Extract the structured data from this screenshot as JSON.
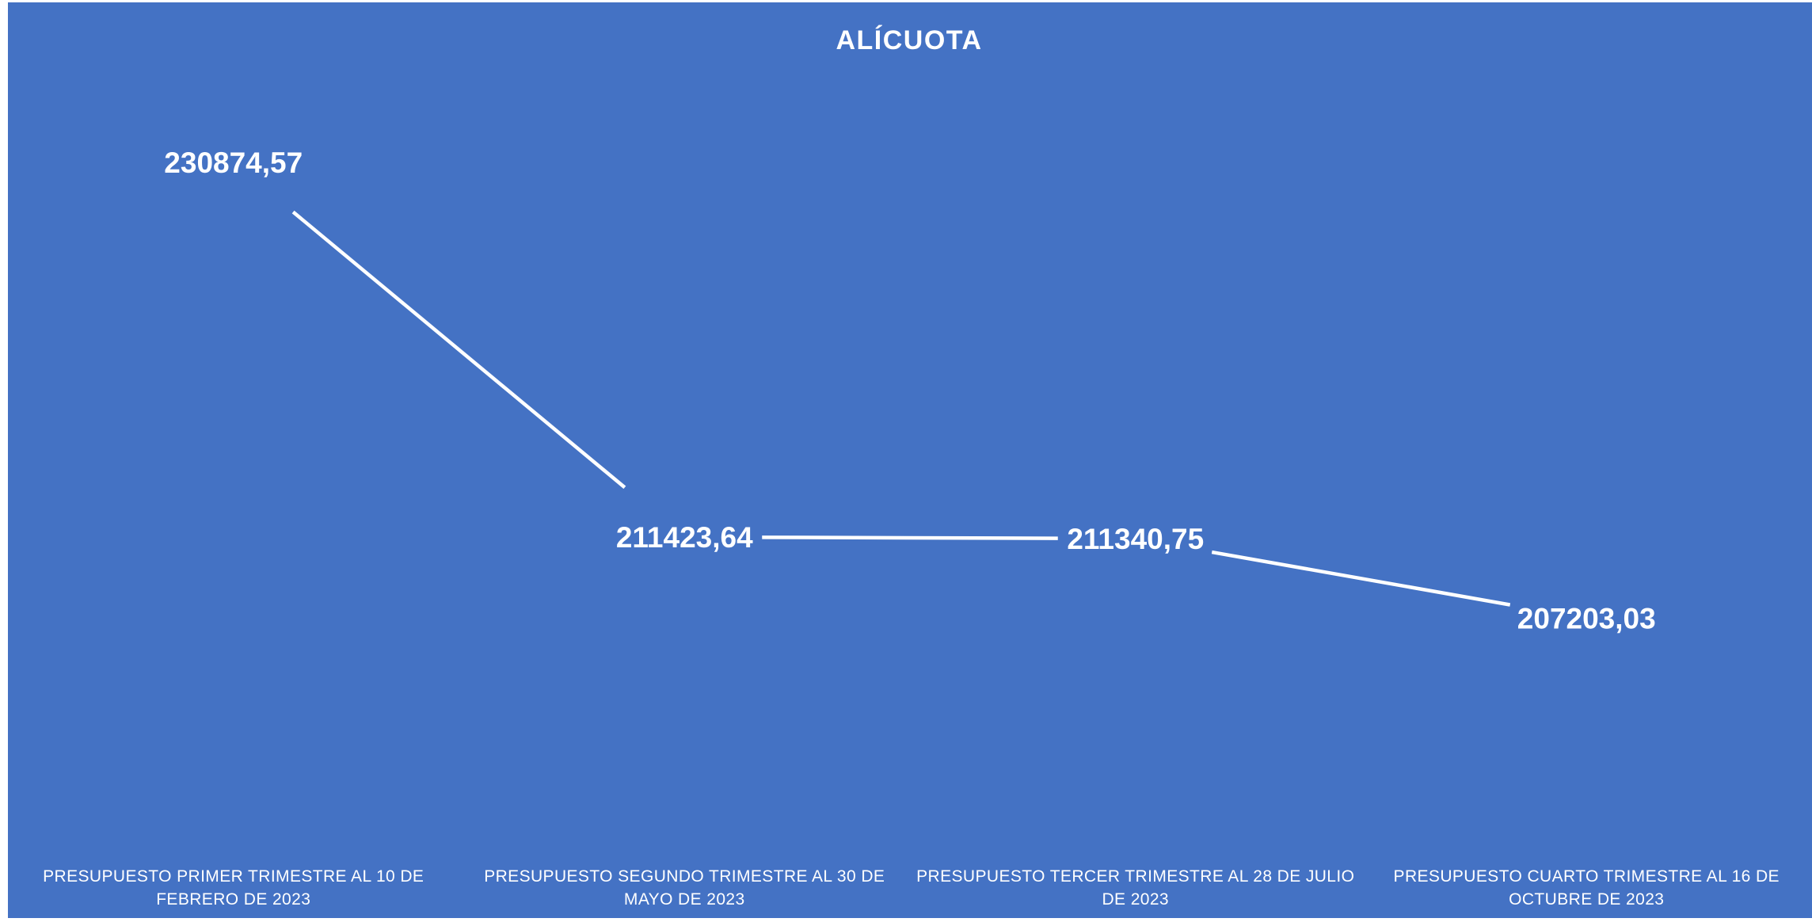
{
  "chart_data": {
    "type": "line",
    "title": "ALÍCUOTA",
    "categories": [
      "PRESUPUESTO PRIMER TRIMESTRE AL 10 DE FEBRERO DE 2023",
      "PRESUPUESTO SEGUNDO TRIMESTRE AL 30 DE MAYO DE 2023",
      "PRESUPUESTO TERCER TRIMESTRE AL 28 DE JULIO DE 2023",
      "PRESUPUESTO CUARTO TRIMESTRE AL 16 DE OCTUBRE DE 2023"
    ],
    "category_lines": [
      [
        "PRESUPUESTO PRIMER TRIMESTRE AL 10 DE",
        "FEBRERO DE 2023"
      ],
      [
        "PRESUPUESTO SEGUNDO TRIMESTRE AL 30 DE",
        "MAYO DE 2023"
      ],
      [
        "PRESUPUESTO TERCER TRIMESTRE AL 28 DE JULIO",
        "DE 2023"
      ],
      [
        "PRESUPUESTO CUARTO TRIMESTRE AL 16 DE",
        "OCTUBRE DE 2023"
      ]
    ],
    "values": [
      230874.57,
      211423.64,
      211340.75,
      207203.03
    ],
    "data_labels": [
      "230874,57",
      "211423,64",
      "211340,75",
      "207203,03"
    ],
    "grid": false,
    "legend": "none",
    "drop_lines": true,
    "colors": {
      "background": "#4472C4",
      "line": "#FFFFFF",
      "text": "#FFFFFF"
    }
  }
}
